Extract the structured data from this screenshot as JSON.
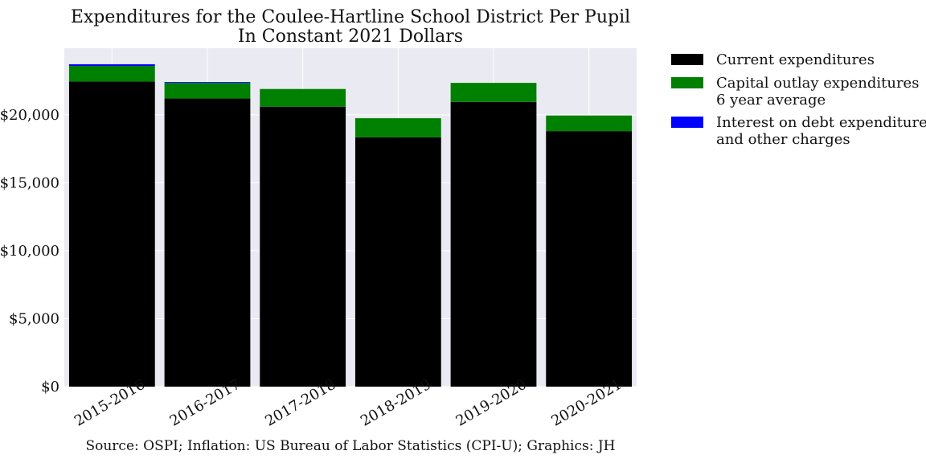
{
  "chart_data": {
    "type": "bar",
    "stacked": true,
    "title": "Expenditures for the Coulee-Hartline School District Per Pupil",
    "subtitle": "In Constant 2021 Dollars",
    "categories": [
      "2015-2016",
      "2016-2017",
      "2017-2018",
      "2018-2019",
      "2019-2020",
      "2020-2021"
    ],
    "series": [
      {
        "name": "Current expenditures",
        "color": "#000000",
        "values": [
          22450,
          21200,
          20600,
          18350,
          20950,
          18800
        ]
      },
      {
        "name": "Capital outlay expenditures\n6 year average",
        "color": "#008000",
        "values": [
          1150,
          1150,
          1300,
          1400,
          1400,
          1150
        ]
      },
      {
        "name": "Interest on debt expenditures\nand other charges",
        "color": "#0000ff",
        "values": [
          120,
          60,
          0,
          0,
          0,
          0
        ]
      }
    ],
    "ylim": [
      0,
      24900
    ],
    "yticks": [
      0,
      5000,
      10000,
      15000,
      20000
    ],
    "ytick_labels": [
      "$0",
      "$5,000",
      "$10,000",
      "$15,000",
      "$20,000"
    ],
    "grid": true,
    "legend_position": "outside-right",
    "source": "Source: OSPI; Inflation: US Bureau of Labor Statistics (CPI-U); Graphics: JH"
  }
}
